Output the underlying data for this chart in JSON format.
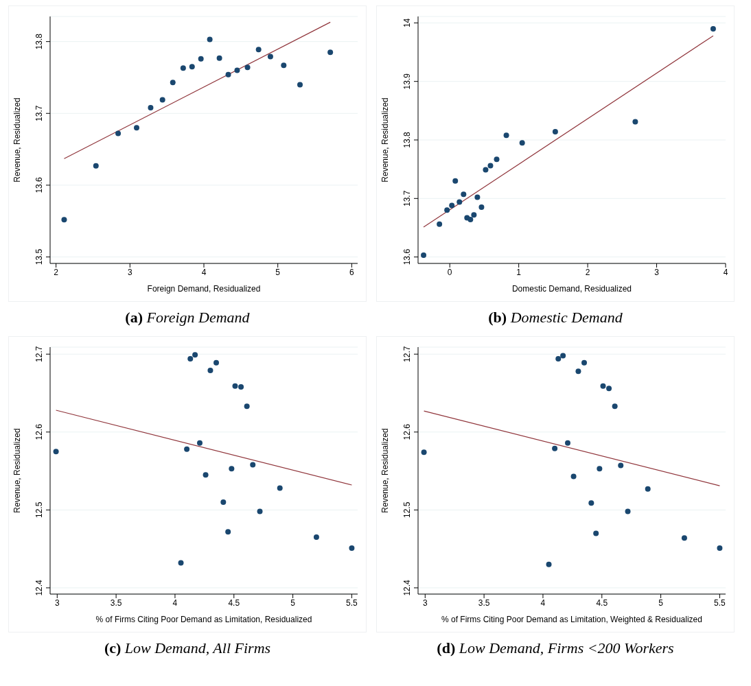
{
  "chart_data": [
    {
      "type": "scatter",
      "title": "(a) Foreign Demand",
      "xlabel": "Foreign Demand, Residualized",
      "ylabel": "Revenue, Residualized",
      "xlim": [
        1.92,
        6.08
      ],
      "xticks": [
        2,
        3,
        4,
        5,
        6
      ],
      "ylim": [
        13.491,
        13.835
      ],
      "yticks": [
        13.5,
        13.6,
        13.7,
        13.8
      ],
      "grid": "y",
      "series": [
        {
          "marker": "circle",
          "color": "#1a476f",
          "x": [
            2.11,
            2.54,
            2.84,
            3.09,
            3.28,
            3.44,
            3.58,
            3.72,
            3.84,
            3.96,
            4.08,
            4.21,
            4.33,
            4.45,
            4.59,
            4.74,
            4.9,
            5.08,
            5.3,
            5.71
          ],
          "values": [
            13.552,
            13.627,
            13.672,
            13.68,
            13.708,
            13.719,
            13.743,
            13.763,
            13.765,
            13.776,
            13.803,
            13.777,
            13.754,
            13.76,
            13.764,
            13.789,
            13.779,
            13.767,
            13.74,
            13.785
          ]
        },
        {
          "type": "line",
          "color": "#90353b",
          "x": [
            2.11,
            5.71
          ],
          "values": [
            13.637,
            13.827
          ]
        }
      ]
    },
    {
      "type": "scatter",
      "title": "(b) Domestic Demand",
      "xlabel": "Domestic Demand, Residualized",
      "ylabel": "Revenue, Residualized",
      "xlim": [
        -0.46,
        4.0
      ],
      "xticks": [
        0,
        1,
        2,
        3,
        4
      ],
      "ylim": [
        13.589,
        14.011
      ],
      "yticks": [
        13.6,
        13.7,
        13.8,
        13.9,
        14
      ],
      "grid": "y",
      "series": [
        {
          "marker": "circle",
          "color": "#1a476f",
          "x": [
            -0.38,
            -0.15,
            -0.04,
            0.03,
            0.08,
            0.14,
            0.2,
            0.25,
            0.3,
            0.35,
            0.4,
            0.46,
            0.52,
            0.59,
            0.68,
            0.82,
            1.05,
            1.53,
            2.69,
            3.82
          ],
          "values": [
            13.603,
            13.656,
            13.68,
            13.688,
            13.73,
            13.694,
            13.707,
            13.667,
            13.664,
            13.672,
            13.702,
            13.685,
            13.749,
            13.756,
            13.767,
            13.808,
            13.795,
            13.814,
            13.831,
            13.99
          ]
        },
        {
          "type": "line",
          "color": "#90353b",
          "x": [
            -0.38,
            3.82
          ],
          "values": [
            13.651,
            13.978
          ]
        }
      ]
    },
    {
      "type": "scatter",
      "title": "(c) Low Demand, All Firms",
      "xlabel": "% of Firms Citing Poor Demand as Limitation, Residualized",
      "ylabel": "Revenue, Residualized",
      "xlim": [
        2.94,
        5.55
      ],
      "xticks": [
        3,
        3.5,
        4,
        4.5,
        5,
        5.5
      ],
      "ylim": [
        12.392,
        12.709
      ],
      "yticks": [
        12.4,
        12.5,
        12.6,
        12.7
      ],
      "grid": "y",
      "series": [
        {
          "marker": "circle",
          "color": "#1a476f",
          "x": [
            2.99,
            4.05,
            4.1,
            4.13,
            4.17,
            4.21,
            4.26,
            4.3,
            4.35,
            4.41,
            4.45,
            4.48,
            4.51,
            4.56,
            4.61,
            4.66,
            4.72,
            4.89,
            5.2,
            5.5
          ],
          "values": [
            12.575,
            12.432,
            12.578,
            12.694,
            12.699,
            12.586,
            12.545,
            12.679,
            12.689,
            12.51,
            12.472,
            12.553,
            12.659,
            12.658,
            12.633,
            12.558,
            12.498,
            12.528,
            12.465,
            12.451
          ]
        },
        {
          "type": "line",
          "color": "#90353b",
          "x": [
            2.99,
            5.5
          ],
          "values": [
            12.628,
            12.532
          ]
        }
      ]
    },
    {
      "type": "scatter",
      "title": "(d) Low Demand, Firms <200 Workers",
      "xlabel": "% of Firms Citing Poor Demand as Limitation, Weighted & Residualized",
      "ylabel": "Revenue, Residualized",
      "xlim": [
        2.94,
        5.55
      ],
      "xticks": [
        3,
        3.5,
        4,
        4.5,
        5,
        5.5
      ],
      "ylim": [
        12.392,
        12.709
      ],
      "yticks": [
        12.4,
        12.5,
        12.6,
        12.7
      ],
      "grid": "y",
      "series": [
        {
          "marker": "circle",
          "color": "#1a476f",
          "x": [
            2.99,
            4.05,
            4.1,
            4.13,
            4.17,
            4.21,
            4.26,
            4.3,
            4.35,
            4.41,
            4.45,
            4.48,
            4.51,
            4.56,
            4.61,
            4.66,
            4.72,
            4.89,
            5.2,
            5.5
          ],
          "values": [
            12.574,
            12.43,
            12.579,
            12.694,
            12.698,
            12.586,
            12.543,
            12.678,
            12.689,
            12.509,
            12.47,
            12.553,
            12.659,
            12.656,
            12.633,
            12.557,
            12.498,
            12.527,
            12.464,
            12.451
          ]
        },
        {
          "type": "line",
          "color": "#90353b",
          "x": [
            2.99,
            5.5
          ],
          "values": [
            12.627,
            12.531
          ]
        }
      ]
    }
  ]
}
